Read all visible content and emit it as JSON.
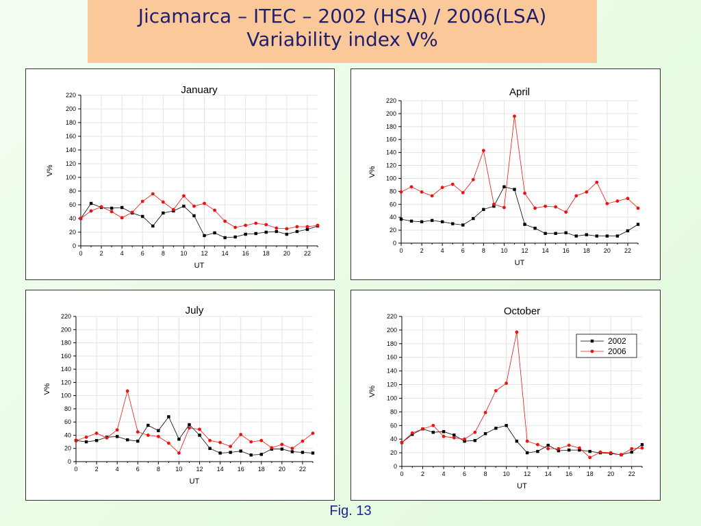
{
  "slide": {
    "title_line1": "Jicamarca – ITEC – 2002 (HSA) / 2006(LSA)",
    "title_line2": "Variability index V%",
    "caption": "Fig. 13"
  },
  "colors": {
    "series_2002": "#000000",
    "series_2006": "#ee1111"
  },
  "chart_data": [
    {
      "type": "line",
      "title": "January",
      "xlabel": "UT",
      "ylabel": "V%",
      "xlim": [
        0,
        23
      ],
      "ylim": [
        0,
        220
      ],
      "xticks": [
        0,
        2,
        4,
        6,
        8,
        10,
        12,
        14,
        16,
        18,
        20,
        22
      ],
      "yticks": [
        0,
        20,
        40,
        60,
        80,
        100,
        120,
        140,
        160,
        180,
        200,
        220
      ],
      "grid": true,
      "legend": null,
      "x": [
        0,
        1,
        2,
        3,
        4,
        5,
        6,
        7,
        8,
        9,
        10,
        11,
        12,
        13,
        14,
        15,
        16,
        17,
        18,
        19,
        20,
        21,
        22,
        23
      ],
      "series": [
        {
          "name": "2002",
          "marker": "square",
          "values": [
            40,
            62,
            56,
            55,
            56,
            48,
            43,
            29,
            48,
            51,
            58,
            44,
            15,
            19,
            12,
            13,
            17,
            18,
            20,
            21,
            17,
            21,
            24,
            29
          ]
        },
        {
          "name": "2006",
          "marker": "circle",
          "values": [
            40,
            51,
            57,
            50,
            41,
            49,
            65,
            76,
            64,
            53,
            73,
            58,
            62,
            52,
            36,
            27,
            30,
            33,
            31,
            26,
            25,
            28,
            28,
            30
          ]
        }
      ]
    },
    {
      "type": "line",
      "title": "April",
      "xlabel": "UT",
      "ylabel": "V%",
      "xlim": [
        0,
        23
      ],
      "ylim": [
        0,
        220
      ],
      "xticks": [
        0,
        2,
        4,
        6,
        8,
        10,
        12,
        14,
        16,
        18,
        20,
        22
      ],
      "yticks": [
        0,
        20,
        40,
        60,
        80,
        100,
        120,
        140,
        160,
        180,
        200,
        220
      ],
      "grid": true,
      "legend": null,
      "x": [
        0,
        1,
        2,
        3,
        4,
        5,
        6,
        7,
        8,
        9,
        10,
        11,
        12,
        13,
        14,
        15,
        16,
        17,
        18,
        19,
        20,
        21,
        22,
        23
      ],
      "series": [
        {
          "name": "2002",
          "marker": "square",
          "values": [
            37,
            34,
            33,
            35,
            33,
            30,
            28,
            38,
            52,
            57,
            87,
            83,
            29,
            23,
            15,
            15,
            16,
            11,
            13,
            11,
            11,
            11,
            19,
            29
          ]
        },
        {
          "name": "2006",
          "marker": "circle",
          "values": [
            79,
            87,
            79,
            73,
            86,
            91,
            78,
            98,
            143,
            60,
            55,
            196,
            77,
            54,
            57,
            56,
            48,
            73,
            79,
            94,
            61,
            65,
            69,
            54
          ]
        }
      ]
    },
    {
      "type": "line",
      "title": "July",
      "xlabel": "UT",
      "ylabel": "V%",
      "xlim": [
        0,
        23
      ],
      "ylim": [
        0,
        220
      ],
      "xticks": [
        0,
        2,
        4,
        6,
        8,
        10,
        12,
        14,
        16,
        18,
        20,
        22
      ],
      "yticks": [
        0,
        20,
        40,
        60,
        80,
        100,
        120,
        140,
        160,
        180,
        200,
        220
      ],
      "grid": true,
      "legend": null,
      "x": [
        0,
        1,
        2,
        3,
        4,
        5,
        6,
        7,
        8,
        9,
        10,
        11,
        12,
        13,
        14,
        15,
        16,
        17,
        18,
        19,
        20,
        21,
        22,
        23
      ],
      "series": [
        {
          "name": "2002",
          "marker": "square",
          "values": [
            32,
            30,
            32,
            37,
            38,
            33,
            31,
            55,
            47,
            68,
            34,
            56,
            40,
            20,
            13,
            14,
            16,
            10,
            11,
            19,
            19,
            15,
            14,
            13
          ]
        },
        {
          "name": "2006",
          "marker": "circle",
          "values": [
            32,
            37,
            43,
            36,
            48,
            107,
            45,
            40,
            38,
            28,
            13,
            51,
            49,
            32,
            29,
            23,
            41,
            30,
            32,
            21,
            26,
            20,
            31,
            43
          ]
        }
      ]
    },
    {
      "type": "line",
      "title": "October",
      "xlabel": "UT",
      "ylabel": "V%",
      "xlim": [
        0,
        23
      ],
      "ylim": [
        0,
        220
      ],
      "xticks": [
        0,
        2,
        4,
        6,
        8,
        10,
        12,
        14,
        16,
        18,
        20,
        22
      ],
      "yticks": [
        0,
        20,
        40,
        60,
        80,
        100,
        120,
        140,
        160,
        180,
        200,
        220
      ],
      "grid": true,
      "legend": "top-right",
      "x": [
        0,
        1,
        2,
        3,
        4,
        5,
        6,
        7,
        8,
        9,
        10,
        11,
        12,
        13,
        14,
        15,
        16,
        17,
        18,
        19,
        20,
        21,
        22,
        23
      ],
      "series": [
        {
          "name": "2002",
          "marker": "square",
          "values": [
            35,
            47,
            55,
            50,
            51,
            46,
            37,
            38,
            48,
            56,
            60,
            37,
            20,
            22,
            31,
            23,
            24,
            24,
            22,
            20,
            19,
            17,
            21,
            32
          ]
        },
        {
          "name": "2006",
          "marker": "circle",
          "values": [
            35,
            49,
            55,
            60,
            44,
            42,
            40,
            50,
            79,
            111,
            122,
            197,
            37,
            32,
            26,
            26,
            31,
            27,
            13,
            21,
            20,
            17,
            26,
            27
          ]
        }
      ]
    }
  ]
}
